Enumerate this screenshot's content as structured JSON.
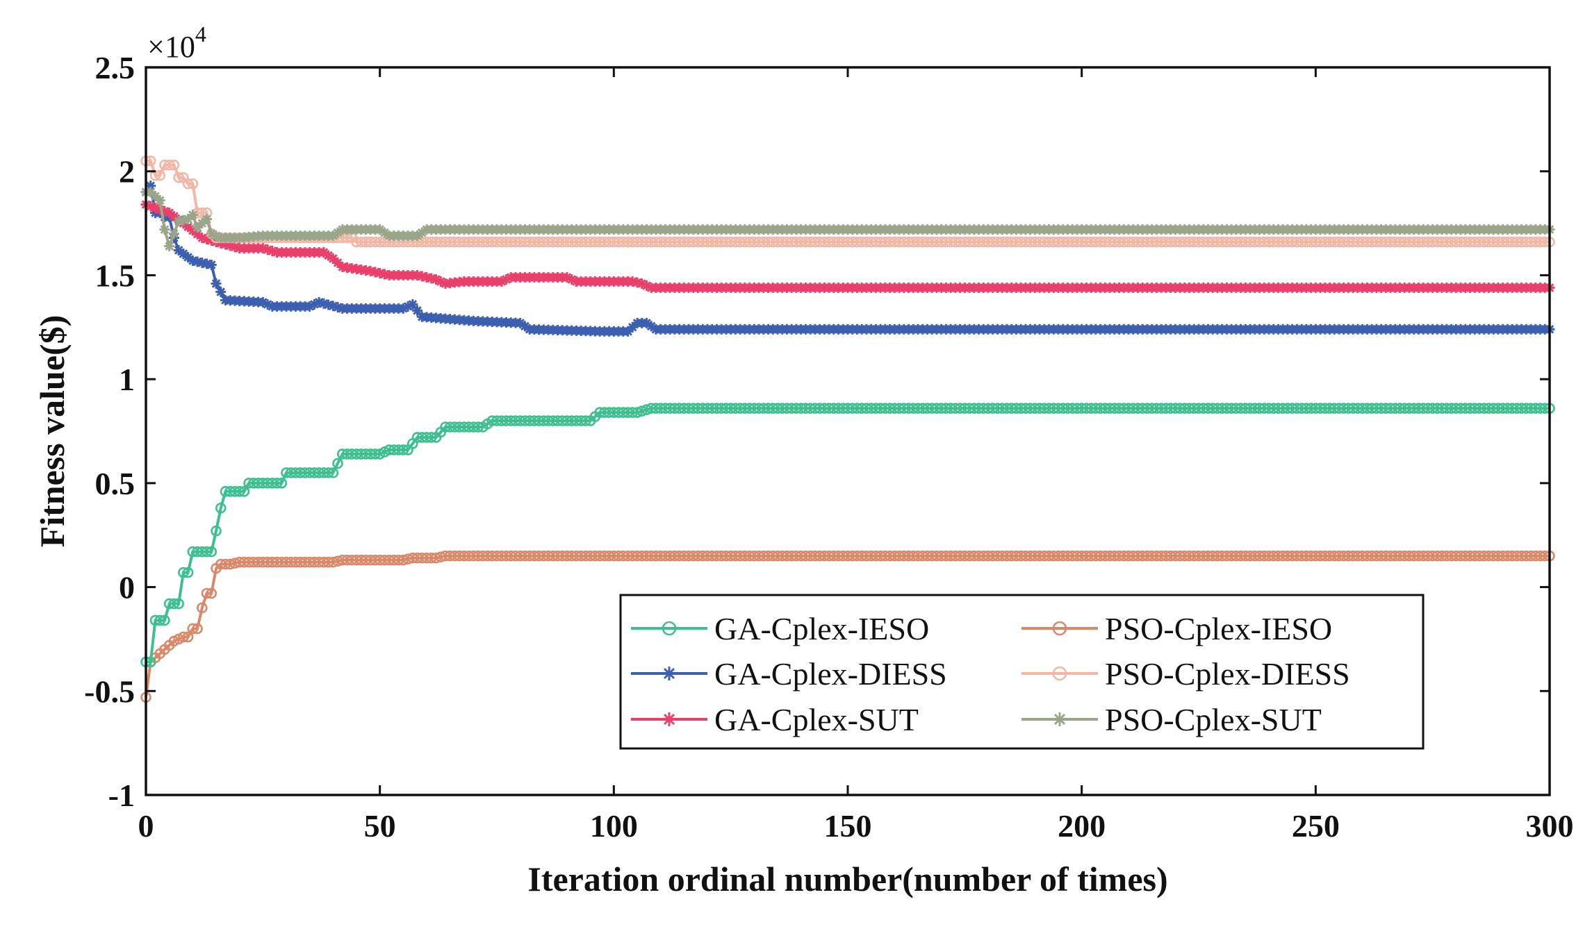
{
  "chart_data": {
    "type": "line",
    "title": "",
    "xlabel": "Iteration ordinal number(number of times)",
    "ylabel": "Fitness value($)",
    "y_exponent_label": "×10",
    "y_exponent_power": "4",
    "xlim": [
      0,
      300
    ],
    "ylim": [
      -1,
      2.5
    ],
    "xticks": [
      0,
      50,
      100,
      150,
      200,
      250,
      300
    ],
    "xtick_labels": [
      "0",
      "50",
      "100",
      "150",
      "200",
      "250",
      "300"
    ],
    "yticks": [
      -1,
      -0.5,
      0,
      0.5,
      1,
      1.5,
      2,
      2.5
    ],
    "ytick_labels": [
      "-1",
      "-0.5",
      "0",
      "0.5",
      "1",
      "1.5",
      "2",
      "2.5"
    ],
    "legend_position": "lower-right",
    "series": [
      {
        "name": "GA-Cplex-IESO",
        "color": "#3dbf8f",
        "marker": "circle",
        "points": [
          [
            0,
            -0.36
          ],
          [
            1,
            -0.36
          ],
          [
            2,
            -0.16
          ],
          [
            4,
            -0.16
          ],
          [
            5,
            -0.08
          ],
          [
            7,
            -0.08
          ],
          [
            8,
            0.07
          ],
          [
            9,
            0.07
          ],
          [
            10,
            0.17
          ],
          [
            14,
            0.17
          ],
          [
            15,
            0.27
          ],
          [
            16,
            0.38
          ],
          [
            17,
            0.46
          ],
          [
            21,
            0.46
          ],
          [
            22,
            0.5
          ],
          [
            29,
            0.5
          ],
          [
            30,
            0.55
          ],
          [
            40,
            0.55
          ],
          [
            42,
            0.64
          ],
          [
            50,
            0.64
          ],
          [
            52,
            0.66
          ],
          [
            56,
            0.66
          ],
          [
            58,
            0.72
          ],
          [
            62,
            0.72
          ],
          [
            64,
            0.77
          ],
          [
            72,
            0.77
          ],
          [
            74,
            0.8
          ],
          [
            95,
            0.8
          ],
          [
            97,
            0.84
          ],
          [
            105,
            0.84
          ],
          [
            108,
            0.86
          ],
          [
            300,
            0.86
          ]
        ]
      },
      {
        "name": "GA-Cplex-DIESS",
        "color": "#3d5fb0",
        "marker": "asterisk",
        "points": [
          [
            0,
            1.9
          ],
          [
            1,
            1.93
          ],
          [
            2,
            1.8
          ],
          [
            3,
            1.8
          ],
          [
            4,
            1.78
          ],
          [
            5,
            1.78
          ],
          [
            6,
            1.68
          ],
          [
            7,
            1.62
          ],
          [
            10,
            1.57
          ],
          [
            14,
            1.55
          ],
          [
            15,
            1.46
          ],
          [
            16,
            1.42
          ],
          [
            17,
            1.38
          ],
          [
            25,
            1.37
          ],
          [
            27,
            1.35
          ],
          [
            35,
            1.35
          ],
          [
            37,
            1.37
          ],
          [
            42,
            1.34
          ],
          [
            55,
            1.34
          ],
          [
            57,
            1.36
          ],
          [
            59,
            1.3
          ],
          [
            70,
            1.28
          ],
          [
            80,
            1.27
          ],
          [
            82,
            1.24
          ],
          [
            97,
            1.23
          ],
          [
            103,
            1.23
          ],
          [
            105,
            1.27
          ],
          [
            107,
            1.27
          ],
          [
            109,
            1.24
          ],
          [
            300,
            1.24
          ]
        ]
      },
      {
        "name": "GA-Cplex-SUT",
        "color": "#e8406a",
        "marker": "asterisk",
        "points": [
          [
            0,
            1.84
          ],
          [
            5,
            1.8
          ],
          [
            8,
            1.75
          ],
          [
            12,
            1.68
          ],
          [
            15,
            1.66
          ],
          [
            20,
            1.63
          ],
          [
            25,
            1.63
          ],
          [
            28,
            1.61
          ],
          [
            38,
            1.61
          ],
          [
            40,
            1.58
          ],
          [
            42,
            1.54
          ],
          [
            48,
            1.52
          ],
          [
            52,
            1.5
          ],
          [
            58,
            1.5
          ],
          [
            62,
            1.48
          ],
          [
            64,
            1.46
          ],
          [
            68,
            1.47
          ],
          [
            76,
            1.47
          ],
          [
            78,
            1.49
          ],
          [
            90,
            1.49
          ],
          [
            92,
            1.47
          ],
          [
            104,
            1.47
          ],
          [
            106,
            1.46
          ],
          [
            108,
            1.44
          ],
          [
            300,
            1.44
          ]
        ]
      },
      {
        "name": "PSO-Cplex-IESO",
        "color": "#d9886a",
        "marker": "circle",
        "points": [
          [
            0,
            -0.53
          ],
          [
            1,
            -0.36
          ],
          [
            2,
            -0.34
          ],
          [
            4,
            -0.3
          ],
          [
            6,
            -0.26
          ],
          [
            8,
            -0.24
          ],
          [
            9,
            -0.24
          ],
          [
            10,
            -0.2
          ],
          [
            11,
            -0.2
          ],
          [
            12,
            -0.1
          ],
          [
            13,
            -0.03
          ],
          [
            14,
            -0.03
          ],
          [
            15,
            0.09
          ],
          [
            16,
            0.11
          ],
          [
            18,
            0.11
          ],
          [
            20,
            0.12
          ],
          [
            40,
            0.12
          ],
          [
            42,
            0.13
          ],
          [
            55,
            0.13
          ],
          [
            57,
            0.14
          ],
          [
            62,
            0.14
          ],
          [
            64,
            0.15
          ],
          [
            300,
            0.15
          ]
        ]
      },
      {
        "name": "PSO-Cplex-DIESS",
        "color": "#f2b7a4",
        "marker": "circle",
        "points": [
          [
            0,
            2.05
          ],
          [
            1,
            2.05
          ],
          [
            2,
            1.98
          ],
          [
            3,
            1.98
          ],
          [
            4,
            2.03
          ],
          [
            6,
            2.03
          ],
          [
            7,
            1.97
          ],
          [
            8,
            1.97
          ],
          [
            9,
            1.94
          ],
          [
            10,
            1.94
          ],
          [
            11,
            1.8
          ],
          [
            13,
            1.8
          ],
          [
            14,
            1.7
          ],
          [
            15,
            1.68
          ],
          [
            44,
            1.68
          ],
          [
            45,
            1.66
          ],
          [
            300,
            1.66
          ]
        ]
      },
      {
        "name": "PSO-Cplex-SUT",
        "color": "#9aa58a",
        "marker": "asterisk",
        "points": [
          [
            0,
            1.9
          ],
          [
            1,
            1.9
          ],
          [
            2,
            1.88
          ],
          [
            3,
            1.86
          ],
          [
            4,
            1.72
          ],
          [
            5,
            1.64
          ],
          [
            6,
            1.7
          ],
          [
            7,
            1.76
          ],
          [
            9,
            1.77
          ],
          [
            10,
            1.79
          ],
          [
            11,
            1.73
          ],
          [
            13,
            1.77
          ],
          [
            14,
            1.7
          ],
          [
            16,
            1.68
          ],
          [
            20,
            1.68
          ],
          [
            25,
            1.69
          ],
          [
            40,
            1.69
          ],
          [
            42,
            1.72
          ],
          [
            50,
            1.72
          ],
          [
            52,
            1.69
          ],
          [
            58,
            1.69
          ],
          [
            60,
            1.72
          ],
          [
            300,
            1.72
          ]
        ]
      }
    ]
  }
}
